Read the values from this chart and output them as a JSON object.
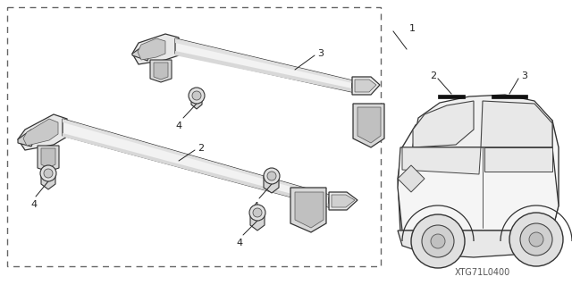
{
  "bg_color": "#ffffff",
  "fig_width": 6.4,
  "fig_height": 3.19,
  "dpi": 100,
  "watermark": "XTG71L0400",
  "label_color": "#222222",
  "line_color": "#555555",
  "part_edge": "#333333",
  "part_fill": "#f0f0f0",
  "part_dark": "#cccccc",
  "part_med": "#e0e0e0"
}
